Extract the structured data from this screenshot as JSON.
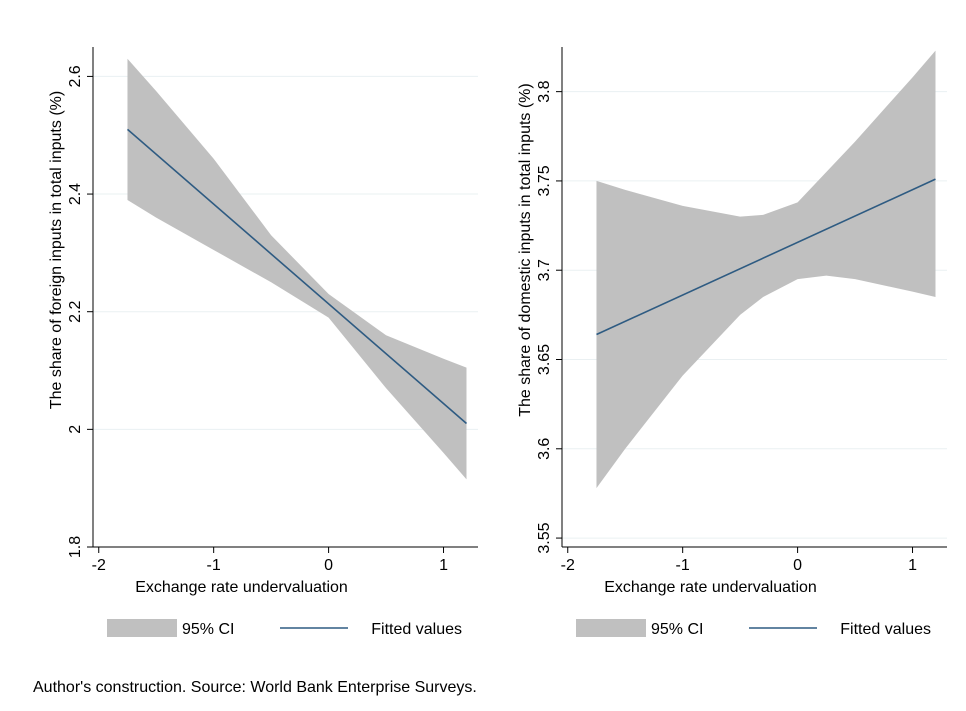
{
  "chart_data": [
    {
      "type": "line",
      "title": "",
      "xlabel": "Exchange rate undervaluation",
      "ylabel": "The share of foreign inputs in total inputs (%)",
      "xlim": [
        -2.05,
        1.3
      ],
      "ylim": [
        1.8,
        2.65
      ],
      "xticks": [
        -2,
        -1,
        0,
        1
      ],
      "xtick_labels": [
        "-2",
        "-1",
        "0",
        "1"
      ],
      "yticks": [
        1.8,
        2.0,
        2.2,
        2.4,
        2.6
      ],
      "ytick_labels": [
        "1.8",
        "2",
        "2.2",
        "2.4",
        "2.6"
      ],
      "grid": "horizontal",
      "legend_position": "bottom",
      "series": [
        {
          "name": "95% CI",
          "kind": "band",
          "color": "#c0c0c0",
          "x": [
            -1.75,
            -1.5,
            -1.0,
            -0.5,
            0.0,
            0.5,
            1.0,
            1.2
          ],
          "lower": [
            2.39,
            2.36,
            2.305,
            2.25,
            2.19,
            2.07,
            1.96,
            1.915
          ],
          "upper": [
            2.63,
            2.575,
            2.46,
            2.33,
            2.23,
            2.16,
            2.12,
            2.105
          ]
        },
        {
          "name": "Fitted values",
          "kind": "line",
          "color": "#2e5b82",
          "x": [
            -1.75,
            1.2
          ],
          "y": [
            2.51,
            2.01
          ]
        }
      ]
    },
    {
      "type": "line",
      "title": "",
      "xlabel": "Exchange rate undervaluation",
      "ylabel": "The share of domestic inputs in total inputs (%)",
      "xlim": [
        -2.05,
        1.3
      ],
      "ylim": [
        3.545,
        3.825
      ],
      "xticks": [
        -2,
        -1,
        0,
        1
      ],
      "xtick_labels": [
        "-2",
        "-1",
        "0",
        "1"
      ],
      "yticks": [
        3.55,
        3.6,
        3.65,
        3.7,
        3.75,
        3.8
      ],
      "ytick_labels": [
        "3.55",
        "3.6",
        "3.65",
        "3.7",
        "3.75",
        "3.8"
      ],
      "grid": "horizontal",
      "legend_position": "bottom",
      "series": [
        {
          "name": "95% CI",
          "kind": "band",
          "color": "#c0c0c0",
          "x": [
            -1.75,
            -1.5,
            -1.0,
            -0.5,
            -0.3,
            0.0,
            0.25,
            0.5,
            1.0,
            1.2
          ],
          "lower": [
            3.578,
            3.6,
            3.641,
            3.675,
            3.685,
            3.695,
            3.697,
            3.695,
            3.688,
            3.685
          ],
          "upper": [
            3.75,
            3.745,
            3.736,
            3.73,
            3.731,
            3.738,
            3.755,
            3.772,
            3.808,
            3.823
          ]
        },
        {
          "name": "Fitted values",
          "kind": "line",
          "color": "#2e5b82",
          "x": [
            -1.75,
            1.2
          ],
          "y": [
            3.664,
            3.751
          ]
        }
      ]
    }
  ],
  "note": "Author's construction. Source: World Bank Enterprise Surveys."
}
